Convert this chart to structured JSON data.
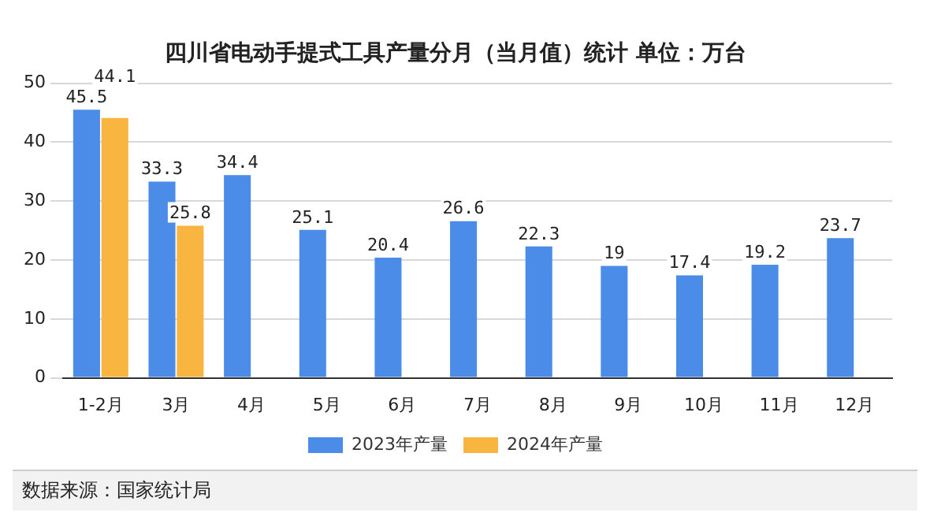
{
  "chart_data": {
    "type": "bar",
    "title": "四川省电动手提式工具产量分月（当月值）统计 单位：万台",
    "categories": [
      "1-2月",
      "3月",
      "4月",
      "5月",
      "6月",
      "7月",
      "8月",
      "9月",
      "10月",
      "11月",
      "12月"
    ],
    "series": [
      {
        "name": "2023年产量",
        "color": "#4a8ce8",
        "values": [
          45.5,
          33.3,
          34.4,
          25.1,
          20.4,
          26.6,
          22.3,
          19,
          17.4,
          19.2,
          23.7
        ]
      },
      {
        "name": "2024年产量",
        "color": "#f8b53f",
        "values": [
          44.1,
          25.8,
          null,
          null,
          null,
          null,
          null,
          null,
          null,
          null,
          null
        ]
      }
    ],
    "ylim": [
      0,
      50
    ],
    "yticks": [
      0,
      10,
      20,
      30,
      40,
      50
    ],
    "grid": "y",
    "legend": "bottom",
    "data_labels": true,
    "annotations": [
      "数据来源：国家统计局"
    ]
  }
}
